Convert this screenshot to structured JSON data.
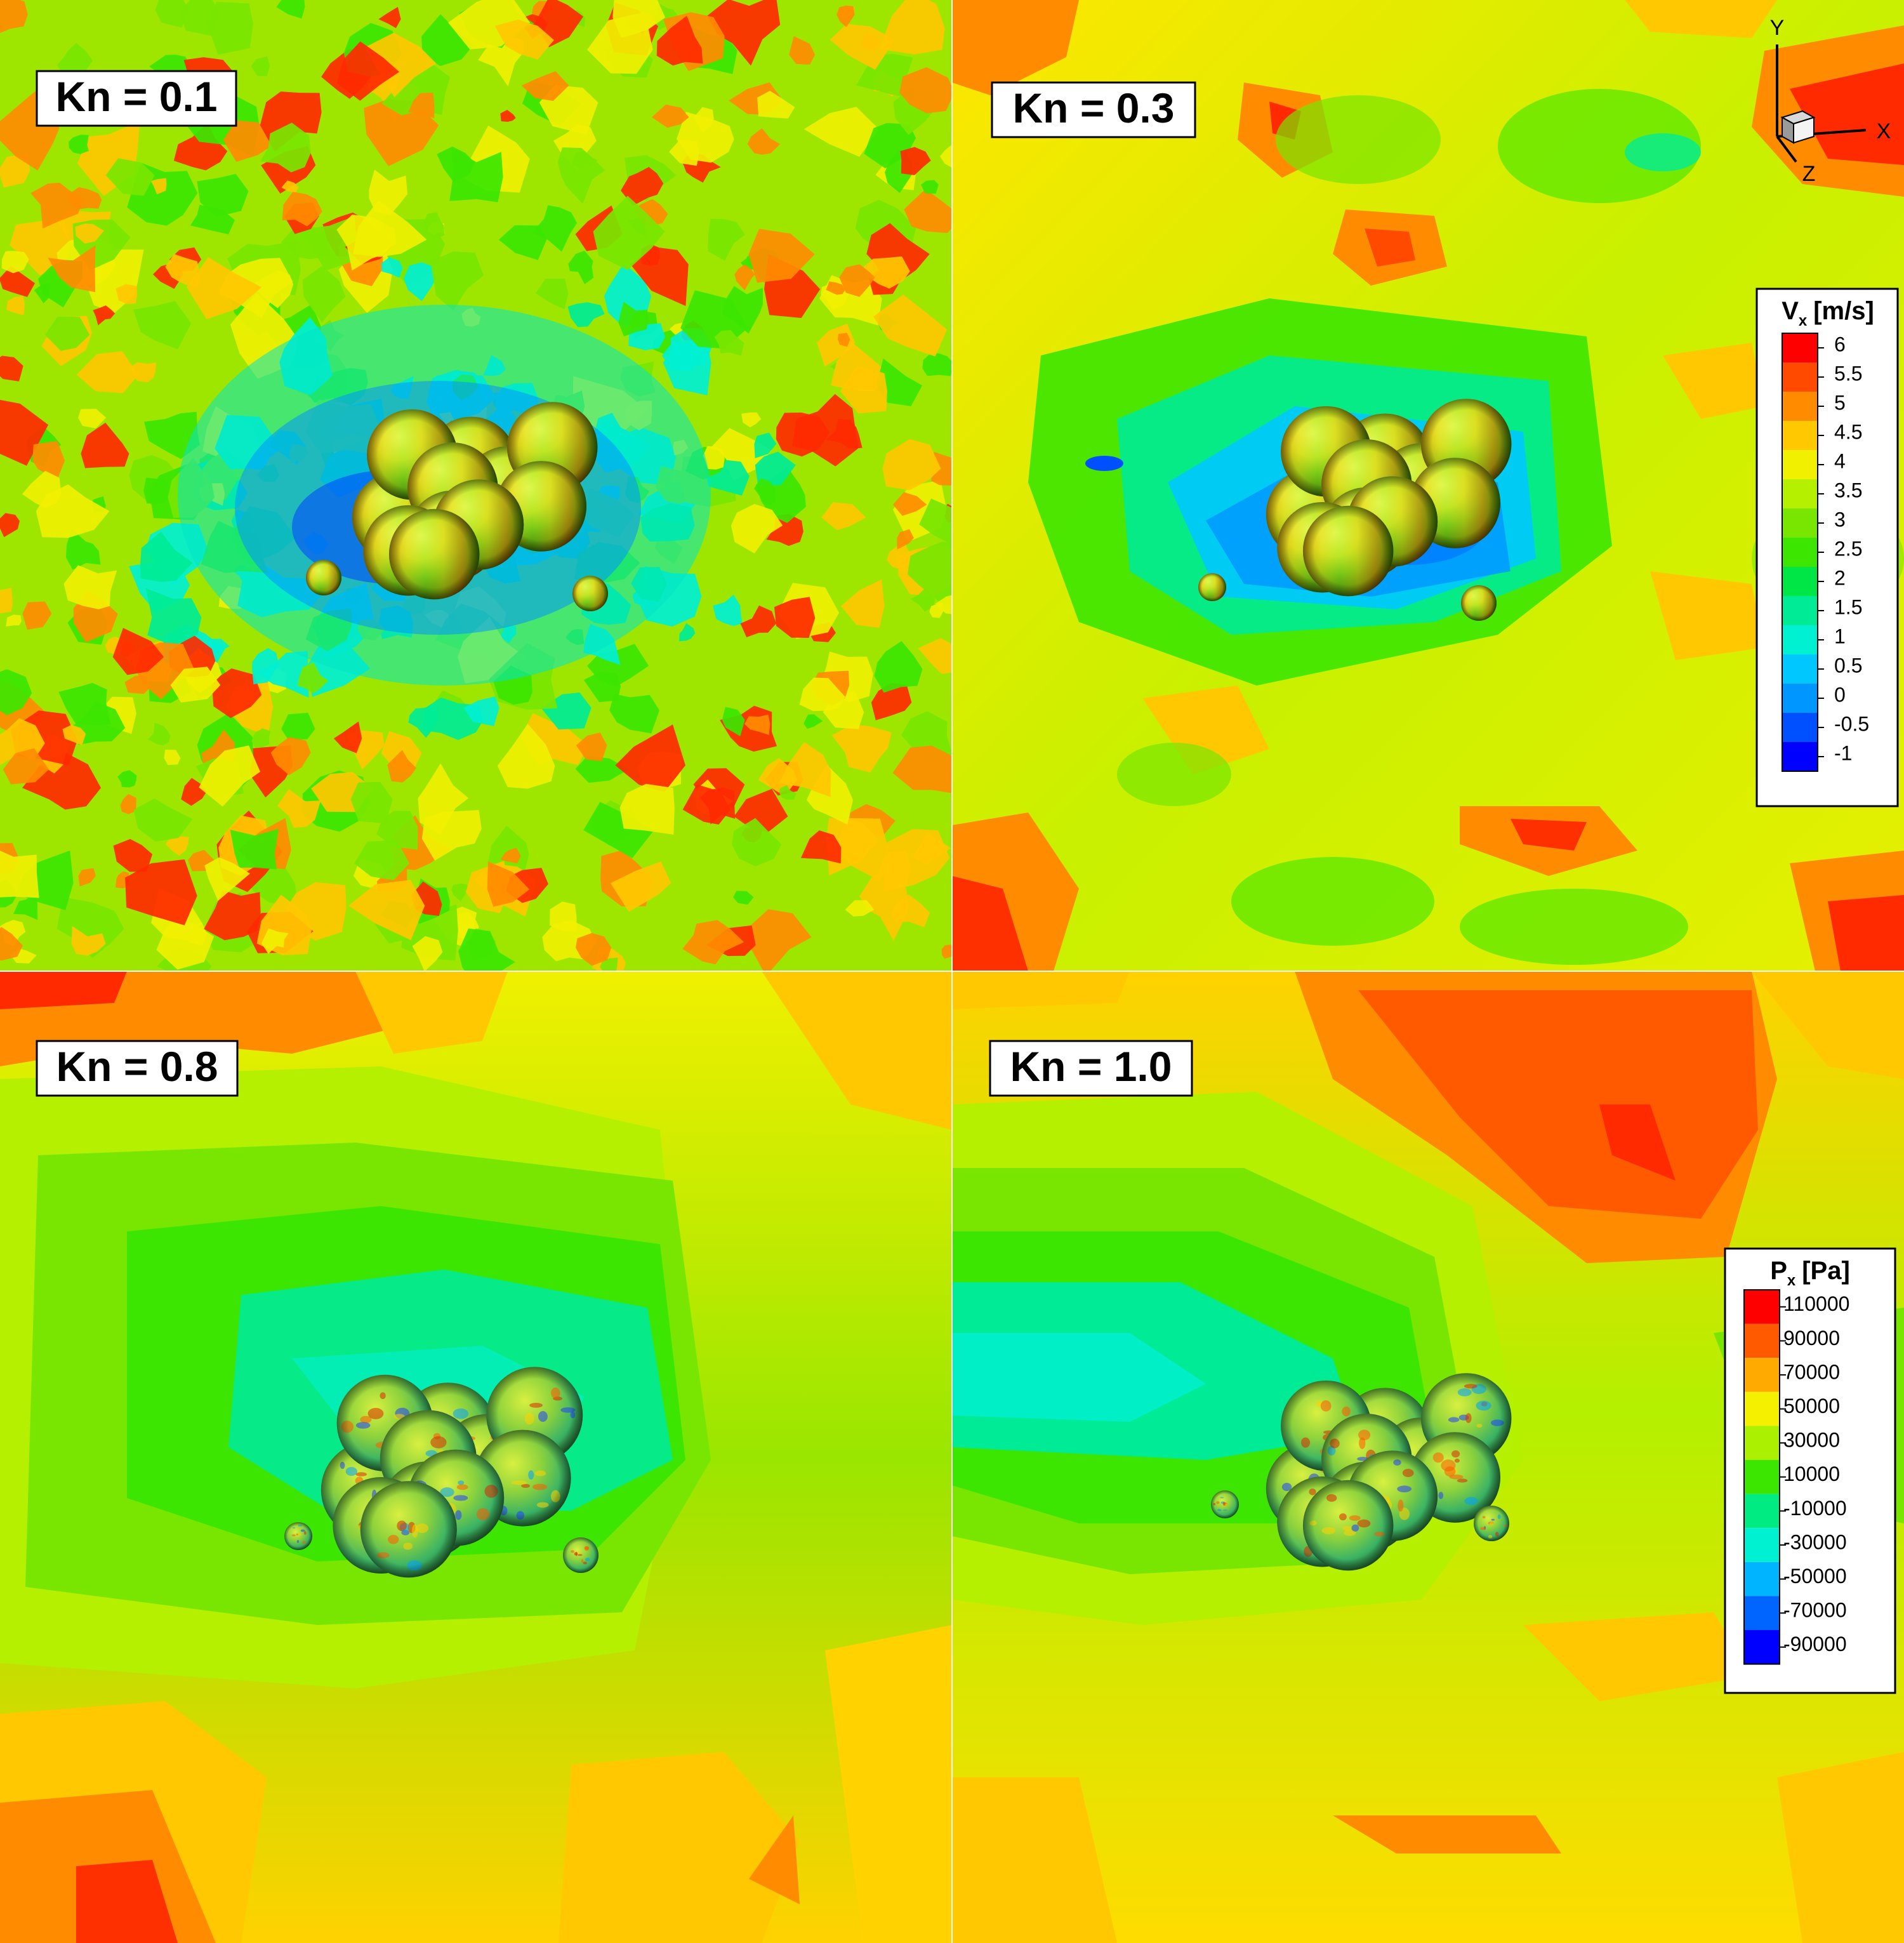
{
  "panels": [
    {
      "id": "tl",
      "label": "Kn = 0.1",
      "palette": "noisy"
    },
    {
      "id": "tr",
      "label": "Kn = 0.3",
      "palette": "smooth"
    },
    {
      "id": "bl",
      "label": "Kn = 0.8",
      "palette": "broad"
    },
    {
      "id": "br",
      "label": "Kn = 1.0",
      "palette": "broad"
    }
  ],
  "axes_triad": {
    "y_label": "Y",
    "x_label": "X",
    "z_label": "Z"
  },
  "legend_velocity": {
    "title_main": "V",
    "title_sub": "x",
    "title_unit": "[m/s]",
    "values": [
      "6",
      "5.5",
      "5",
      "4.5",
      "4",
      "3.5",
      "3",
      "2.5",
      "2",
      "1.5",
      "1",
      "0.5",
      "0",
      "-0.5",
      "-1"
    ],
    "colors": [
      "#ff0000",
      "#ff4a00",
      "#ff8c00",
      "#ffc800",
      "#f0f000",
      "#b4f000",
      "#78e600",
      "#3ce600",
      "#00e646",
      "#00eb96",
      "#00f0d2",
      "#00c8ff",
      "#0096ff",
      "#0050ff",
      "#0000ff"
    ]
  },
  "legend_pressure": {
    "title_main": "P",
    "title_sub": "x",
    "title_unit": "[Pa]",
    "values": [
      "110000",
      "90000",
      "70000",
      "50000",
      "30000",
      "10000",
      "-10000",
      "-30000",
      "-50000",
      "-70000",
      "-90000"
    ],
    "colors": [
      "#ff0000",
      "#ff5a00",
      "#ffaa00",
      "#f5f000",
      "#aaf000",
      "#3ce600",
      "#00eb82",
      "#00f0d2",
      "#00b4ff",
      "#0064ff",
      "#0000ff"
    ]
  }
}
